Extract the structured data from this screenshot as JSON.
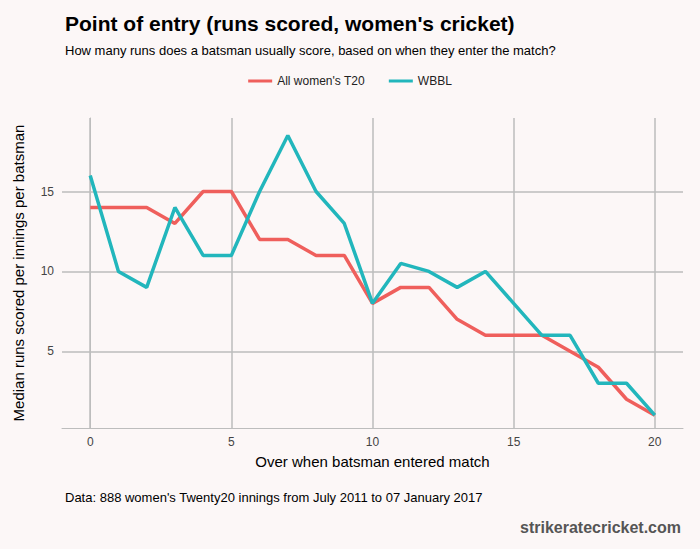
{
  "chart_data": {
    "type": "line",
    "title": "Point of entry (runs scored, women's cricket)",
    "subtitle": "How many runs does a batsman usually score, based on when they enter the match?",
    "caption": "Data: 888 women's Twenty20 innings from July 2011 to 07 January 2017",
    "source": "strikeratecricket.com",
    "x_label": "Over when batsman entered match",
    "y_label": "Median runs scored per innings per batsman",
    "x": [
      0,
      1,
      2,
      3,
      4,
      5,
      6,
      7,
      8,
      9,
      10,
      11,
      12,
      13,
      14,
      15,
      16,
      17,
      18,
      19,
      20
    ],
    "series": [
      {
        "name": "All women's T20",
        "color": "#ef5f5c",
        "values": [
          14,
          14,
          14,
          13,
          15,
          15,
          12,
          12,
          11,
          11,
          8,
          9,
          9,
          7,
          6,
          6,
          6,
          5,
          4,
          2,
          1
        ]
      },
      {
        "name": "WBBL",
        "color": "#22b6bc",
        "values": [
          16,
          10,
          9,
          14,
          11,
          11,
          15,
          18.5,
          15,
          13,
          8,
          10.5,
          10,
          9,
          10,
          8,
          6,
          6,
          3,
          3,
          1
        ]
      }
    ],
    "xlim": [
      -1,
      21
    ],
    "xticks": [
      0,
      5,
      10,
      15,
      20
    ],
    "ylim": [
      0.2,
      19.6
    ],
    "yticks": [
      5,
      10,
      15
    ],
    "grid": true,
    "legend": "top"
  }
}
